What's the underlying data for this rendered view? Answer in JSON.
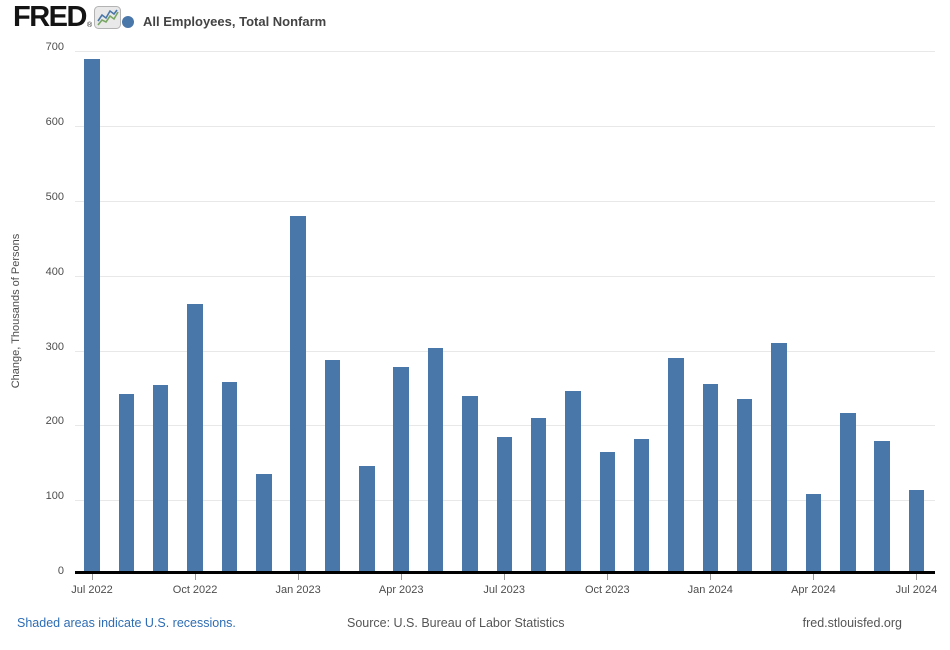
{
  "header": {
    "logo_text": "FRED",
    "logo_registered": "®",
    "legend_label": "All Employees, Total Nonfarm"
  },
  "chart_data": {
    "type": "bar",
    "title": "All Employees, Total Nonfarm",
    "series_name": "All Employees, Total Nonfarm",
    "xlabel": "",
    "ylabel": "Change, Thousands of Persons",
    "ylim": [
      0,
      700
    ],
    "y_ticks": [
      0,
      100,
      200,
      300,
      400,
      500,
      600,
      700
    ],
    "grid": true,
    "legend_position": "top-left",
    "bar_color": "#4a77a9",
    "x": [
      "Jul 2022",
      "Aug 2022",
      "Sep 2022",
      "Oct 2022",
      "Nov 2022",
      "Dec 2022",
      "Jan 2023",
      "Feb 2023",
      "Mar 2023",
      "Apr 2023",
      "May 2023",
      "Jun 2023",
      "Jul 2023",
      "Aug 2023",
      "Sep 2023",
      "Oct 2023",
      "Nov 2023",
      "Dec 2023",
      "Jan 2024",
      "Feb 2024",
      "Mar 2024",
      "Apr 2024",
      "May 2024",
      "Jun 2024",
      "Jul 2024"
    ],
    "values": [
      690,
      242,
      254,
      362,
      258,
      135,
      480,
      287,
      146,
      278,
      303,
      240,
      184,
      210,
      246,
      165,
      182,
      290,
      256,
      236,
      310,
      108,
      216,
      179,
      114
    ],
    "x_tick_labels": [
      "Jul 2022",
      "Oct 2022",
      "Jan 2023",
      "Apr 2023",
      "Jul 2023",
      "Oct 2023",
      "Jan 2024",
      "Apr 2024",
      "Jul 2024"
    ],
    "x_tick_interval": 3
  },
  "footer": {
    "recession_note": "Shaded areas indicate U.S. recessions.",
    "source": "Source: U.S. Bureau of Labor Statistics",
    "site": "fred.stlouisfed.org"
  },
  "colors": {
    "logo": "#141414",
    "legend_text": "#434343",
    "axis_text": "#4d4d4d",
    "grid": "#e8e8e8",
    "tick": "#9b9b9b",
    "axis_line": "#000000",
    "link": "#2e6db4",
    "footer_text": "#555555",
    "icon_line_blue": "#4a77a9",
    "icon_line_green": "#79a763",
    "icon_bg": "#e9e9e9",
    "icon_border": "#b3b3b3"
  }
}
